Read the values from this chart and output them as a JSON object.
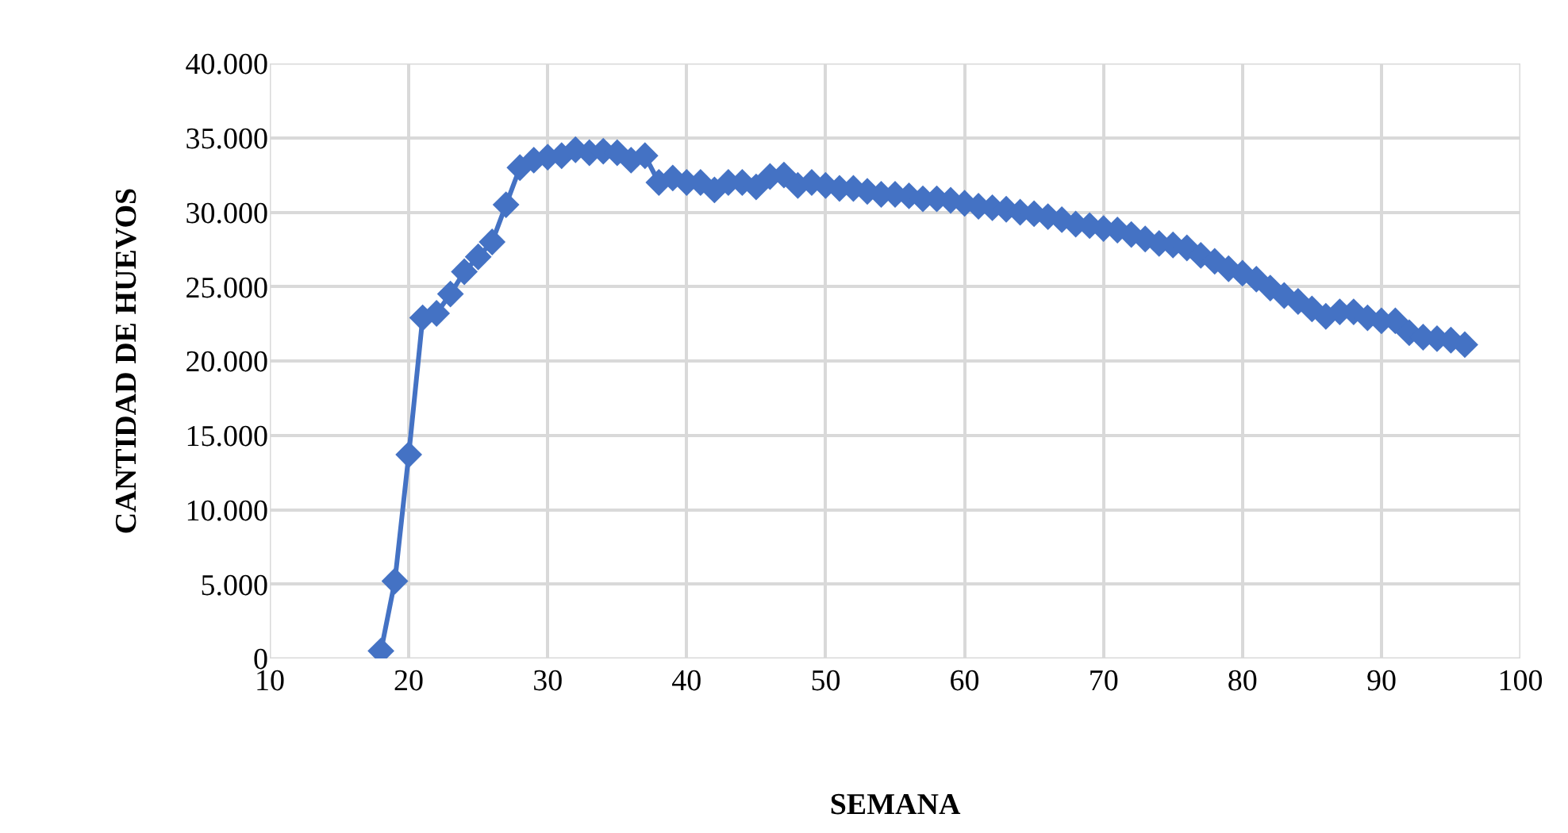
{
  "chart_data": {
    "type": "line",
    "xlabel": "SEMANA",
    "ylabel": "CANTIDAD DE HUEVOS",
    "x": [
      18,
      19,
      20,
      21,
      22,
      23,
      24,
      25,
      26,
      27,
      28,
      29,
      30,
      31,
      32,
      33,
      34,
      35,
      36,
      37,
      38,
      39,
      40,
      41,
      42,
      43,
      44,
      45,
      46,
      47,
      48,
      49,
      50,
      51,
      52,
      53,
      54,
      55,
      56,
      57,
      58,
      59,
      60,
      61,
      62,
      63,
      64,
      65,
      66,
      67,
      68,
      69,
      70,
      71,
      72,
      73,
      74,
      75,
      76,
      77,
      78,
      79,
      80,
      81,
      82,
      83,
      84,
      85,
      86,
      87,
      88,
      89,
      90,
      91,
      92,
      93,
      94,
      95,
      96
    ],
    "series": [
      {
        "color": "#4472c4",
        "values": [
          500,
          5200,
          13700,
          22900,
          23200,
          24500,
          26000,
          27000,
          28000,
          30500,
          33000,
          33500,
          33700,
          33800,
          34200,
          34000,
          34100,
          34000,
          33500,
          33800,
          32000,
          32300,
          32000,
          32000,
          31500,
          32000,
          32000,
          31700,
          32400,
          32500,
          31800,
          32000,
          31800,
          31600,
          31600,
          31400,
          31200,
          31200,
          31100,
          30900,
          30900,
          30800,
          30600,
          30400,
          30300,
          30200,
          30000,
          29900,
          29700,
          29500,
          29200,
          29100,
          28900,
          28800,
          28500,
          28200,
          27900,
          27800,
          27600,
          27100,
          26700,
          26200,
          25900,
          25500,
          24900,
          24400,
          24000,
          23500,
          23000,
          23300,
          23300,
          22900,
          22700,
          22700,
          21900,
          21600,
          21500,
          21400,
          21100
        ]
      }
    ],
    "xlim": [
      10,
      100
    ],
    "xticks": [
      10,
      20,
      30,
      40,
      50,
      60,
      70,
      80,
      90,
      100
    ],
    "ylim": [
      0,
      40000
    ],
    "yticks": [
      0,
      {
        "value": 5000,
        "label": "5.000"
      },
      {
        "value": 10000,
        "label": "10.000"
      },
      {
        "value": 15000,
        "label": "15.000"
      },
      {
        "value": 20000,
        "label": "20.000"
      },
      {
        "value": 25000,
        "label": "25.000"
      },
      {
        "value": 30000,
        "label": "30.000"
      },
      {
        "value": 35000,
        "label": "35.000"
      },
      {
        "value": 40000,
        "label": "40.000"
      }
    ],
    "grid": true,
    "legend": false,
    "marker": "diamond",
    "line_style": "solid"
  }
}
